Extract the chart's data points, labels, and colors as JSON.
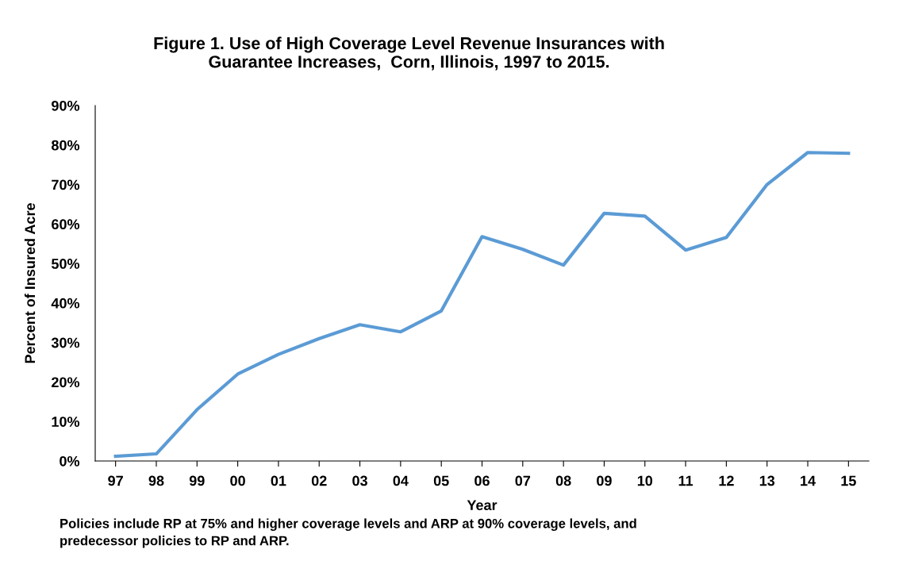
{
  "chart_data": {
    "type": "line",
    "title": "Figure 1. Use of High Coverage Level Revenue Insurances with\nGuarantee Increases,  Corn, Illinois, 1997 to 2015.",
    "xlabel": "Year",
    "ylabel": "Percent of Insured Acre",
    "categories": [
      "97",
      "98",
      "99",
      "00",
      "01",
      "02",
      "03",
      "04",
      "05",
      "06",
      "07",
      "08",
      "09",
      "10",
      "11",
      "12",
      "13",
      "14",
      "15"
    ],
    "series": [
      {
        "color": "#5b9bd5",
        "values": [
          1.2,
          1.8,
          13,
          22,
          27,
          31,
          34.5,
          32.7,
          38,
          56.8,
          53.6,
          49.6,
          62.7,
          62,
          53.4,
          56.6,
          70,
          78.1,
          77.9
        ]
      }
    ],
    "ylim": [
      0,
      90
    ],
    "yticks": [
      {
        "value": 0,
        "label": "0%"
      },
      {
        "value": 10,
        "label": "10%"
      },
      {
        "value": 20,
        "label": "20%"
      },
      {
        "value": 30,
        "label": "30%"
      },
      {
        "value": 40,
        "label": "40%"
      },
      {
        "value": 50,
        "label": "50%"
      },
      {
        "value": 60,
        "label": "60%"
      },
      {
        "value": 70,
        "label": "70%"
      },
      {
        "value": 80,
        "label": "80%"
      },
      {
        "value": 90,
        "label": "90%"
      }
    ],
    "grid": false,
    "legend": false,
    "marker": "none",
    "line_style": "solid",
    "annotations": [
      "Policies include RP at 75% and higher coverage levels and ARP at 90% coverage levels, and\npredecessor policies to RP and ARP."
    ]
  }
}
